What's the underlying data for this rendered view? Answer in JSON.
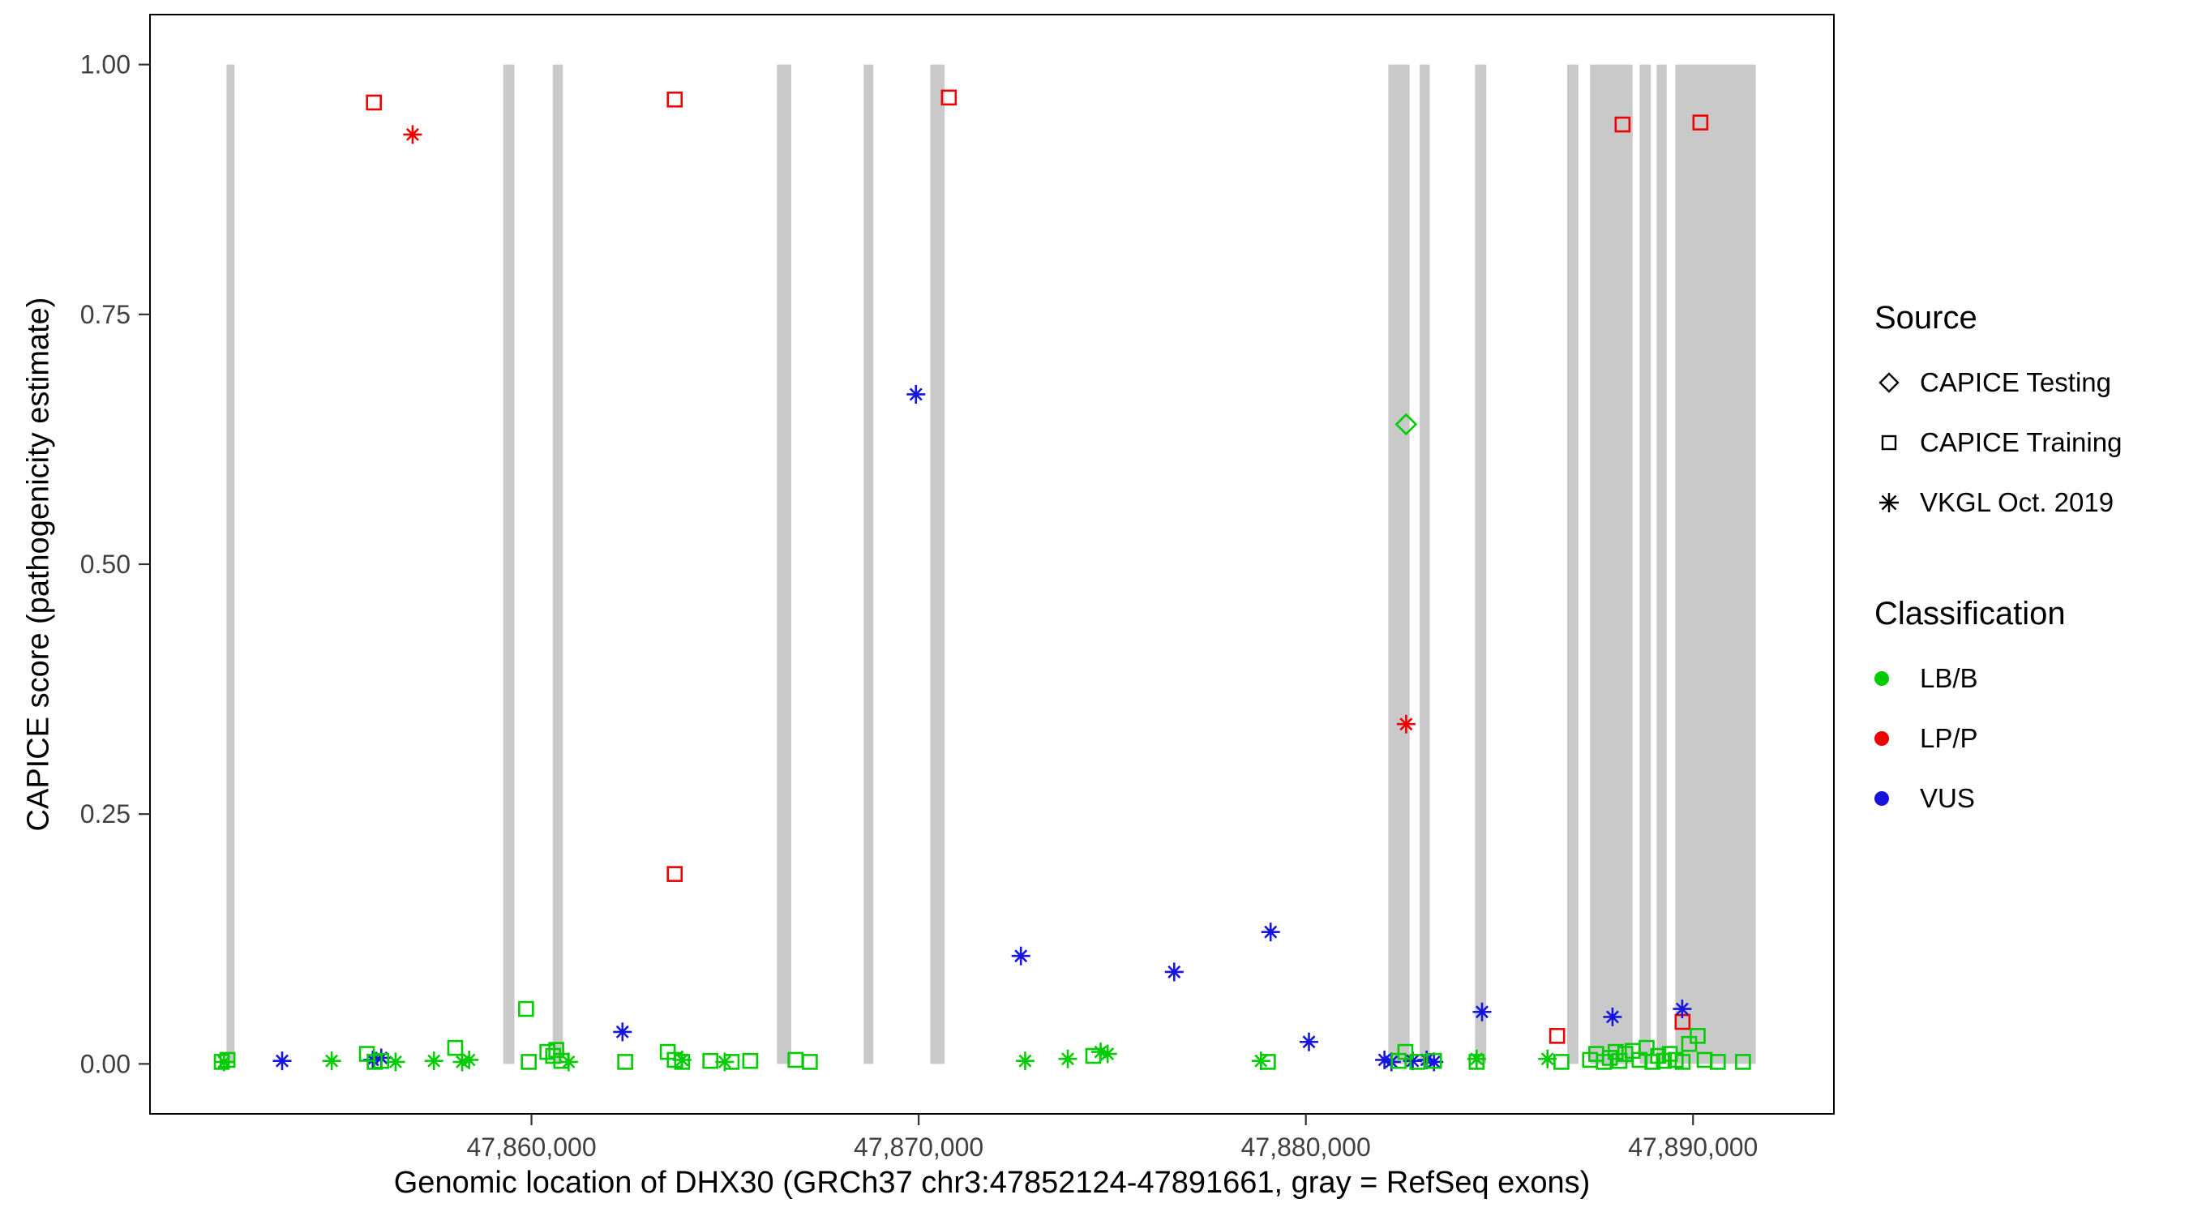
{
  "chart_data": {
    "type": "scatter",
    "title": "",
    "xlabel": "Genomic location of DHX30 (GRCh37 chr3:47852124-47891661, gray = RefSeq exons)",
    "ylabel": "CAPICE score (pathogenicity estimate)",
    "xlim": [
      47850147,
      47893638
    ],
    "ylim": [
      -0.05,
      1.05
    ],
    "x_ticks": [
      {
        "value": 47860000,
        "label": "47,860,000"
      },
      {
        "value": 47870000,
        "label": "47,870,000"
      },
      {
        "value": 47880000,
        "label": "47,880,000"
      },
      {
        "value": 47890000,
        "label": "47,890,000"
      }
    ],
    "y_ticks": [
      {
        "value": 0.0,
        "label": "0.00"
      },
      {
        "value": 0.25,
        "label": "0.25"
      },
      {
        "value": 0.5,
        "label": "0.50"
      },
      {
        "value": 0.75,
        "label": "0.75"
      },
      {
        "value": 1.0,
        "label": "1.00"
      }
    ],
    "exon_color": "#C9C9C9",
    "exons": [
      [
        47852124,
        47852330
      ],
      [
        47859270,
        47859560
      ],
      [
        47860550,
        47860810
      ],
      [
        47866340,
        47866710
      ],
      [
        47868580,
        47868830
      ],
      [
        47870300,
        47870670
      ],
      [
        47882130,
        47882680
      ],
      [
        47882940,
        47883200
      ],
      [
        47884370,
        47884660
      ],
      [
        47886750,
        47887040
      ],
      [
        47887340,
        47888440
      ],
      [
        47888620,
        47888910
      ],
      [
        47889060,
        47889320
      ],
      [
        47889540,
        47891620
      ]
    ],
    "classification_colors": {
      "LB/B": "#00CC00",
      "LP/P": "#EE0000",
      "VUS": "#1515DD"
    },
    "shape_codes": {
      "sq": "square = CAPICE Training",
      "di": "diamond = CAPICE Testing",
      "as": "asterisk = VKGL Oct. 2019"
    },
    "points": [
      [
        47855930,
        0.962,
        "sq",
        "LP/P"
      ],
      [
        47863700,
        0.965,
        "sq",
        "LP/P"
      ],
      [
        47870780,
        0.967,
        "sq",
        "LP/P"
      ],
      [
        47888180,
        0.94,
        "sq",
        "LP/P"
      ],
      [
        47890190,
        0.942,
        "sq",
        "LP/P"
      ],
      [
        47863700,
        0.19,
        "sq",
        "LP/P"
      ],
      [
        47886490,
        0.028,
        "sq",
        "LP/P"
      ],
      [
        47889730,
        0.042,
        "sq",
        "LP/P"
      ],
      [
        47856930,
        0.93,
        "as",
        "LP/P"
      ],
      [
        47882590,
        0.34,
        "as",
        "LP/P"
      ],
      [
        47882590,
        0.64,
        "di",
        "LB/B"
      ],
      [
        47869930,
        0.67,
        "as",
        "VUS"
      ],
      [
        47872640,
        0.108,
        "as",
        "VUS"
      ],
      [
        47876600,
        0.092,
        "as",
        "VUS"
      ],
      [
        47879090,
        0.132,
        "as",
        "VUS"
      ],
      [
        47880080,
        0.022,
        "as",
        "VUS"
      ],
      [
        47862350,
        0.032,
        "as",
        "VUS"
      ],
      [
        47884550,
        0.052,
        "as",
        "VUS"
      ],
      [
        47887920,
        0.047,
        "as",
        "VUS"
      ],
      [
        47889720,
        0.055,
        "as",
        "VUS"
      ],
      [
        47853560,
        0.003,
        "as",
        "VUS"
      ],
      [
        47855900,
        0.004,
        "as",
        "VUS"
      ],
      [
        47856120,
        0.006,
        "as",
        "VUS"
      ],
      [
        47882030,
        0.004,
        "as",
        "VUS"
      ],
      [
        47882210,
        0.002,
        "as",
        "VUS"
      ],
      [
        47882760,
        0.003,
        "as",
        "VUS"
      ],
      [
        47883120,
        0.004,
        "as",
        "VUS"
      ],
      [
        47883310,
        0.002,
        "as",
        "VUS"
      ],
      [
        47852000,
        0.002,
        "sq",
        "LB/B"
      ],
      [
        47852150,
        0.004,
        "sq",
        "LB/B"
      ],
      [
        47855750,
        0.01,
        "sq",
        "LB/B"
      ],
      [
        47855950,
        0.002,
        "sq",
        "LB/B"
      ],
      [
        47856120,
        0.003,
        "sq",
        "LB/B"
      ],
      [
        47858030,
        0.016,
        "sq",
        "LB/B"
      ],
      [
        47859860,
        0.055,
        "sq",
        "LB/B"
      ],
      [
        47859930,
        0.002,
        "sq",
        "LB/B"
      ],
      [
        47860410,
        0.012,
        "sq",
        "LB/B"
      ],
      [
        47860560,
        0.008,
        "sq",
        "LB/B"
      ],
      [
        47860640,
        0.014,
        "sq",
        "LB/B"
      ],
      [
        47860770,
        0.003,
        "sq",
        "LB/B"
      ],
      [
        47862420,
        0.002,
        "sq",
        "LB/B"
      ],
      [
        47863520,
        0.012,
        "sq",
        "LB/B"
      ],
      [
        47863700,
        0.004,
        "sq",
        "LB/B"
      ],
      [
        47863890,
        0.002,
        "sq",
        "LB/B"
      ],
      [
        47864620,
        0.003,
        "sq",
        "LB/B"
      ],
      [
        47865170,
        0.002,
        "sq",
        "LB/B"
      ],
      [
        47865650,
        0.003,
        "sq",
        "LB/B"
      ],
      [
        47866820,
        0.004,
        "sq",
        "LB/B"
      ],
      [
        47867190,
        0.002,
        "sq",
        "LB/B"
      ],
      [
        47874510,
        0.008,
        "sq",
        "LB/B"
      ],
      [
        47879020,
        0.002,
        "sq",
        "LB/B"
      ],
      [
        47882400,
        0.003,
        "sq",
        "LB/B"
      ],
      [
        47882570,
        0.012,
        "sq",
        "LB/B"
      ],
      [
        47882880,
        0.002,
        "sq",
        "LB/B"
      ],
      [
        47883310,
        0.003,
        "sq",
        "LB/B"
      ],
      [
        47884410,
        0.002,
        "sq",
        "LB/B"
      ],
      [
        47886600,
        0.002,
        "sq",
        "LB/B"
      ],
      [
        47887340,
        0.004,
        "sq",
        "LB/B"
      ],
      [
        47887500,
        0.01,
        "sq",
        "LB/B"
      ],
      [
        47887700,
        0.002,
        "sq",
        "LB/B"
      ],
      [
        47887850,
        0.006,
        "sq",
        "LB/B"
      ],
      [
        47888000,
        0.012,
        "sq",
        "LB/B"
      ],
      [
        47888100,
        0.003,
        "sq",
        "LB/B"
      ],
      [
        47888250,
        0.01,
        "sq",
        "LB/B"
      ],
      [
        47888440,
        0.013,
        "sq",
        "LB/B"
      ],
      [
        47888620,
        0.004,
        "sq",
        "LB/B"
      ],
      [
        47888800,
        0.016,
        "sq",
        "LB/B"
      ],
      [
        47888950,
        0.002,
        "sq",
        "LB/B"
      ],
      [
        47889100,
        0.008,
        "sq",
        "LB/B"
      ],
      [
        47889250,
        0.003,
        "sq",
        "LB/B"
      ],
      [
        47889400,
        0.01,
        "sq",
        "LB/B"
      ],
      [
        47889550,
        0.004,
        "sq",
        "LB/B"
      ],
      [
        47889730,
        0.002,
        "sq",
        "LB/B"
      ],
      [
        47889900,
        0.02,
        "sq",
        "LB/B"
      ],
      [
        47890120,
        0.028,
        "sq",
        "LB/B"
      ],
      [
        47890300,
        0.004,
        "sq",
        "LB/B"
      ],
      [
        47890640,
        0.002,
        "sq",
        "LB/B"
      ],
      [
        47891290,
        0.002,
        "sq",
        "LB/B"
      ],
      [
        47852060,
        0.002,
        "as",
        "LB/B"
      ],
      [
        47854840,
        0.003,
        "as",
        "LB/B"
      ],
      [
        47856490,
        0.002,
        "as",
        "LB/B"
      ],
      [
        47857480,
        0.003,
        "as",
        "LB/B"
      ],
      [
        47858210,
        0.002,
        "as",
        "LB/B"
      ],
      [
        47858390,
        0.004,
        "as",
        "LB/B"
      ],
      [
        47860960,
        0.002,
        "as",
        "LB/B"
      ],
      [
        47863890,
        0.004,
        "as",
        "LB/B"
      ],
      [
        47864990,
        0.002,
        "as",
        "LB/B"
      ],
      [
        47872750,
        0.003,
        "as",
        "LB/B"
      ],
      [
        47873850,
        0.005,
        "as",
        "LB/B"
      ],
      [
        47874700,
        0.012,
        "as",
        "LB/B"
      ],
      [
        47874880,
        0.01,
        "as",
        "LB/B"
      ],
      [
        47878840,
        0.003,
        "as",
        "LB/B"
      ],
      [
        47884410,
        0.005,
        "as",
        "LB/B"
      ],
      [
        47886240,
        0.005,
        "as",
        "LB/B"
      ]
    ],
    "legend": {
      "source": {
        "title": "Source",
        "items": [
          {
            "shape": "diamond",
            "label": "CAPICE Testing"
          },
          {
            "shape": "square",
            "label": "CAPICE Training"
          },
          {
            "shape": "asterisk",
            "label": "VKGL Oct. 2019"
          }
        ]
      },
      "classification": {
        "title": "Classification",
        "items": [
          {
            "class": "LB/B",
            "label": "LB/B"
          },
          {
            "class": "LP/P",
            "label": "LP/P"
          },
          {
            "class": "VUS",
            "label": "VUS"
          }
        ]
      }
    }
  }
}
